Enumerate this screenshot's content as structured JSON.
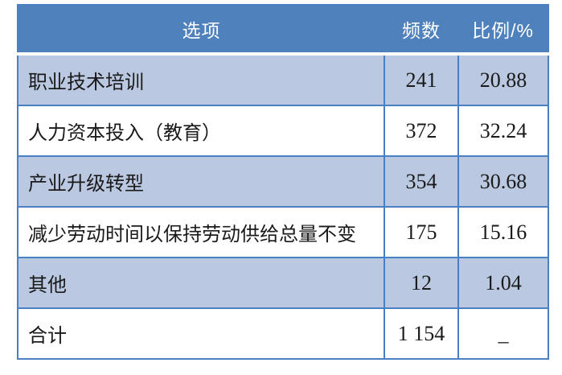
{
  "chart_data": {
    "type": "table",
    "title": "",
    "columns": [
      "选项",
      "频数",
      "比例/%"
    ],
    "rows": [
      [
        "职业技术培训",
        "241",
        "20.88"
      ],
      [
        "人力资本投入（教育）",
        "372",
        "32.24"
      ],
      [
        "产业升级转型",
        "354",
        "30.68"
      ],
      [
        "减少劳动时间以保持劳动供给总量不变",
        "175",
        "15.16"
      ],
      [
        "其他",
        "12",
        "1.04"
      ],
      [
        "合计",
        "1 154",
        "_"
      ]
    ]
  },
  "colors": {
    "header_bg": "#4f81bd",
    "header_text": "#ffffff",
    "row_alt_bg": "#bac9e1",
    "row_bg": "#ffffff",
    "border": "#4a7fc1",
    "body_text": "#1a1a1a"
  }
}
